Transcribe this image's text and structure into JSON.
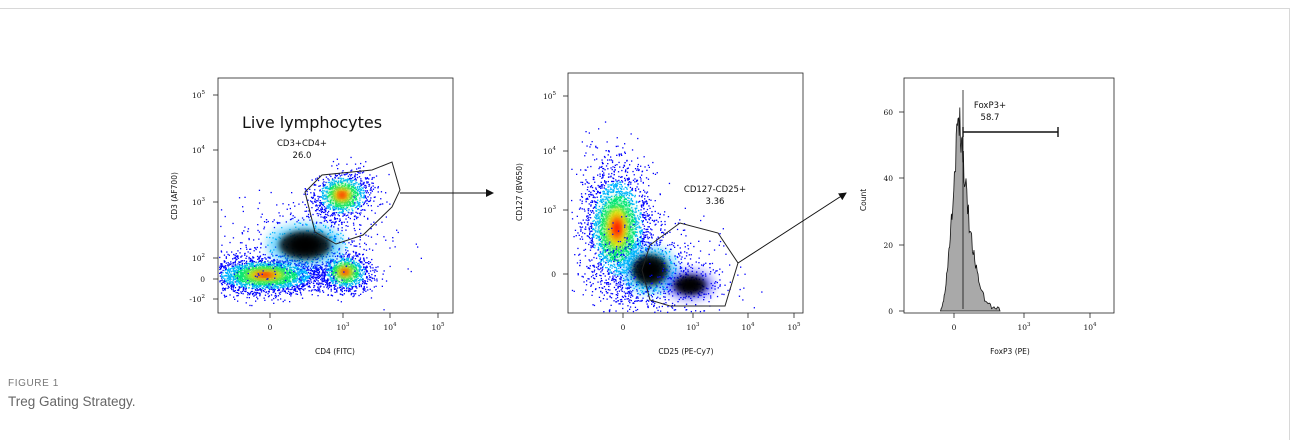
{
  "figure": {
    "label": "FIGURE 1",
    "caption": "Treg Gating Strategy."
  },
  "chart_data": [
    {
      "type": "scatter",
      "subtype": "flow-cytometry-density-dot-plot",
      "xlabel": "CD4 (FITC)",
      "ylabel": "CD3 (AF700)",
      "x_ticks": [
        {
          "base": "",
          "exp": "",
          "text": "0"
        },
        {
          "base": "10",
          "exp": "3"
        },
        {
          "base": "10",
          "exp": "4"
        },
        {
          "base": "10",
          "exp": "5"
        }
      ],
      "y_ticks": [
        {
          "base": "-10",
          "exp": "2"
        },
        {
          "base": "",
          "exp": "",
          "text": "0"
        },
        {
          "base": "10",
          "exp": "2"
        },
        {
          "base": "10",
          "exp": "3"
        },
        {
          "base": "10",
          "exp": "4"
        },
        {
          "base": "10",
          "exp": "5"
        }
      ],
      "title_annotation": "Live lymphocytes",
      "gate": {
        "name": "CD3+CD4+",
        "percent": "26.0"
      },
      "populations": [
        {
          "x": "0",
          "y": "0",
          "note": "CD4-negative cluster"
        },
        {
          "x": "1000",
          "y": "0",
          "note": "CD3- CD4+ cluster"
        },
        {
          "x": "1500",
          "y": "1500",
          "note": "CD3+ CD4+ gated cluster"
        }
      ],
      "colormap": [
        "#0000ff",
        "#00b4ff",
        "#00e676",
        "#ffeb00",
        "#ff6a00",
        "#ff0000"
      ]
    },
    {
      "type": "scatter",
      "subtype": "flow-cytometry-density-dot-plot",
      "xlabel": "CD25 (PE-Cy7)",
      "ylabel": "CD127 (BV650)",
      "x_ticks": [
        {
          "base": "",
          "exp": "",
          "text": "0"
        },
        {
          "base": "10",
          "exp": "3"
        },
        {
          "base": "10",
          "exp": "4"
        },
        {
          "base": "10",
          "exp": "5"
        }
      ],
      "y_ticks": [
        {
          "base": "",
          "exp": "",
          "text": "0"
        },
        {
          "base": "10",
          "exp": "3"
        },
        {
          "base": "10",
          "exp": "4"
        },
        {
          "base": "10",
          "exp": "5"
        }
      ],
      "gate": {
        "name": "CD127-CD25+",
        "percent": "3.36"
      },
      "colormap": [
        "#0000ff",
        "#00b4ff",
        "#00e676",
        "#ffeb00",
        "#ff6a00",
        "#ff0000"
      ]
    },
    {
      "type": "area",
      "subtype": "histogram",
      "xlabel": "FoxP3 (PE)",
      "ylabel": "Count",
      "x_ticks": [
        {
          "base": "",
          "exp": "",
          "text": "0"
        },
        {
          "base": "10",
          "exp": "3"
        },
        {
          "base": "10",
          "exp": "4"
        }
      ],
      "y_ticks": [
        "0",
        "20",
        "40",
        "60"
      ],
      "ylim": [
        0,
        68
      ],
      "gate": {
        "name": "FoxP3+",
        "percent": "58.7"
      },
      "histogram_profile": [
        {
          "x_norm": 0.0,
          "count": 0
        },
        {
          "x_norm": 0.03,
          "count": 3
        },
        {
          "x_norm": 0.06,
          "count": 12
        },
        {
          "x_norm": 0.09,
          "count": 26
        },
        {
          "x_norm": 0.12,
          "count": 42
        },
        {
          "x_norm": 0.15,
          "count": 58
        },
        {
          "x_norm": 0.18,
          "count": 52
        },
        {
          "x_norm": 0.21,
          "count": 38
        },
        {
          "x_norm": 0.25,
          "count": 24
        },
        {
          "x_norm": 0.29,
          "count": 15
        },
        {
          "x_norm": 0.33,
          "count": 8
        },
        {
          "x_norm": 0.38,
          "count": 3
        },
        {
          "x_norm": 0.44,
          "count": 1
        },
        {
          "x_norm": 0.5,
          "count": 0
        }
      ],
      "fill_color": "#a9a9a9"
    }
  ]
}
